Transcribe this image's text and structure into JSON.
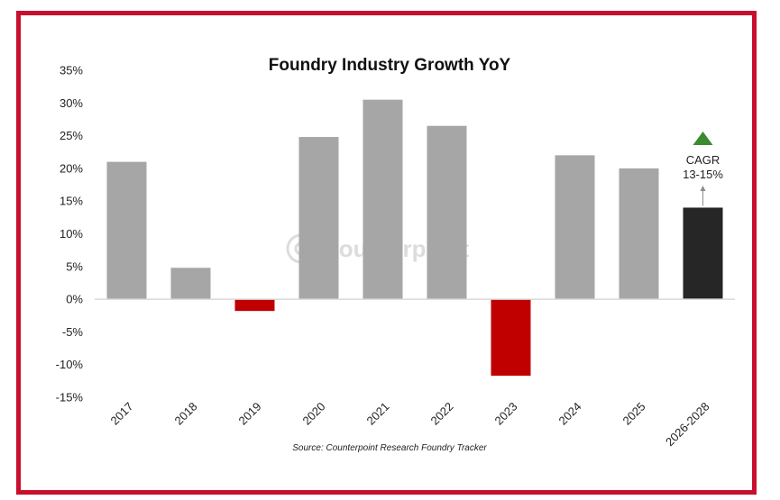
{
  "chart_data": {
    "type": "bar",
    "title": "Foundry Industry Growth YoY",
    "categories": [
      "2017",
      "2018",
      "2019",
      "2020",
      "2021",
      "2022",
      "2023",
      "2024",
      "2025",
      "2026-2028"
    ],
    "values": [
      21,
      4.8,
      -1.8,
      24.8,
      30.5,
      26.5,
      -11.7,
      22,
      20,
      14
    ],
    "bar_colors": [
      "#a6a6a6",
      "#a6a6a6",
      "#c00000",
      "#a6a6a6",
      "#a6a6a6",
      "#a6a6a6",
      "#c00000",
      "#a6a6a6",
      "#a6a6a6",
      "#262626"
    ],
    "ylim": [
      -15,
      35
    ],
    "yticks": [
      "35%",
      "30%",
      "25%",
      "20%",
      "15%",
      "10%",
      "5%",
      "0%",
      "-5%",
      "-10%",
      "-15%"
    ],
    "ytick_values": [
      35,
      30,
      25,
      20,
      15,
      10,
      5,
      0,
      -5,
      -10,
      -15
    ],
    "xlabel": "",
    "ylabel": "",
    "grid": false,
    "annotation": {
      "category": "2026-2028",
      "line1": "CAGR",
      "line2": "13-15%",
      "arrow_color": "#3a8a2e"
    },
    "source": "Source: Counterpoint Research Foundry Tracker",
    "watermark": "Counterpoint"
  },
  "colors": {
    "frame": "#c8102e",
    "axis": "#d9d9d9"
  }
}
